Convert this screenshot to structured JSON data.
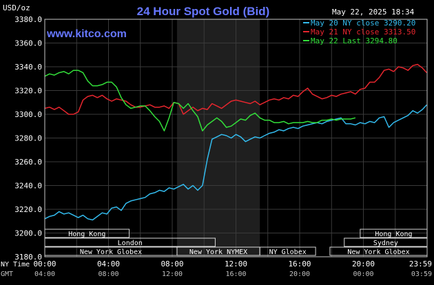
{
  "chart_data": {
    "type": "line",
    "title": "24 Hour Spot Gold (Bid)",
    "watermark": "www.kitco.com",
    "timestamp": "May 22, 2025 18:34",
    "ylabel": "USD/oz",
    "ylim": [
      3180,
      3380
    ],
    "y_ticks": [
      "3180.0",
      "3200.0",
      "3220.0",
      "3240.0",
      "3260.0",
      "3280.0",
      "3300.0",
      "3320.0",
      "3340.0",
      "3360.0",
      "3380.0"
    ],
    "xlim_hours": [
      0,
      24
    ],
    "x_rows": [
      {
        "label": "NY Time",
        "color": "#ffffff",
        "ticks": [
          {
            "h": 0,
            "label": "00:00"
          },
          {
            "h": 4,
            "label": "04:00"
          },
          {
            "h": 8,
            "label": "08:00"
          },
          {
            "h": 12,
            "label": "12:00"
          },
          {
            "h": 16,
            "label": "16:00"
          },
          {
            "h": 20,
            "label": "20:00"
          },
          {
            "h": 23.983,
            "label": "23:59"
          }
        ]
      },
      {
        "label": "GMT",
        "color": "#c0c0c0",
        "ticks": [
          {
            "h": 0,
            "label": "04:00"
          },
          {
            "h": 4,
            "label": "08:00"
          },
          {
            "h": 8,
            "label": "12:00"
          },
          {
            "h": 12,
            "label": "16:00"
          },
          {
            "h": 16,
            "label": "20:00"
          },
          {
            "h": 20,
            "label": "00:00"
          },
          {
            "h": 23.983,
            "label": "03:59"
          }
        ]
      }
    ],
    "shaded_hours": [
      8.3,
      13.5
    ],
    "grid": true,
    "legend_position": "top-right",
    "sessions": [
      {
        "label": "Hong Kong",
        "start": 0,
        "end": 5.3,
        "row": 0
      },
      {
        "label": "Hong Kong",
        "start": 19.8,
        "end": 24,
        "row": 0
      },
      {
        "label": "London",
        "start": 0,
        "end": 10.7,
        "row": 1
      },
      {
        "label": "Sydney",
        "start": 18.8,
        "end": 24,
        "row": 1
      },
      {
        "label": "New York Globex",
        "start": 0,
        "end": 8.3,
        "row": 2
      },
      {
        "label": "New York NYMEX",
        "start": 8.3,
        "end": 13.5,
        "row": 2
      },
      {
        "label": "NY Globex",
        "start": 13.5,
        "end": 17.0,
        "row": 2
      },
      {
        "label": "New York Globex",
        "start": 17.9,
        "end": 24,
        "row": 2
      }
    ],
    "series": [
      {
        "name": "May 20 NY close 3290.20",
        "color": "#33bbee",
        "x": [
          0,
          0.3,
          0.6,
          0.9,
          1.2,
          1.5,
          1.8,
          2.1,
          2.4,
          2.7,
          3.0,
          3.3,
          3.6,
          3.9,
          4.2,
          4.5,
          4.8,
          5.1,
          5.4,
          5.7,
          6.0,
          6.3,
          6.6,
          6.9,
          7.2,
          7.5,
          7.8,
          8.1,
          8.4,
          8.7,
          9.0,
          9.3,
          9.6,
          9.9,
          10.2,
          10.5,
          10.8,
          11.1,
          11.4,
          11.7,
          12.0,
          12.3,
          12.6,
          12.9,
          13.2,
          13.5,
          13.8,
          14.1,
          14.4,
          14.7,
          15.0,
          15.3,
          15.6,
          15.9,
          16.2,
          16.5,
          16.8,
          17.1,
          17.4,
          17.7,
          18.0,
          18.3,
          18.6,
          18.9,
          19.2,
          19.5,
          19.8,
          20.1,
          20.4,
          20.7,
          21.0,
          21.3,
          21.6,
          21.9,
          22.2,
          22.5,
          22.8,
          23.1,
          23.4,
          23.7,
          23.98
        ],
        "values": [
          3212,
          3214,
          3215,
          3218,
          3216,
          3217,
          3215,
          3213,
          3215,
          3212,
          3211,
          3214,
          3217,
          3216,
          3221,
          3222,
          3219,
          3225,
          3227,
          3228,
          3229,
          3230,
          3233,
          3234,
          3236,
          3235,
          3238,
          3237,
          3239,
          3241,
          3237,
          3240,
          3236,
          3240,
          3262,
          3279,
          3281,
          3283,
          3282,
          3280,
          3283,
          3281,
          3277,
          3279,
          3281,
          3280,
          3282,
          3284,
          3285,
          3287,
          3286,
          3288,
          3289,
          3288,
          3290,
          3291,
          3292,
          3293,
          3292,
          3294,
          3295,
          3296,
          3297,
          3292,
          3292,
          3291,
          3293,
          3292,
          3294,
          3293,
          3297,
          3298,
          3289,
          3293,
          3295,
          3297,
          3299,
          3303,
          3301,
          3304,
          3308
        ]
      },
      {
        "name": "May 21 NY close 3313.50",
        "color": "#e8262e",
        "x": [
          0,
          0.3,
          0.6,
          0.9,
          1.2,
          1.5,
          1.8,
          2.1,
          2.4,
          2.7,
          3.0,
          3.3,
          3.6,
          3.9,
          4.2,
          4.5,
          4.8,
          5.1,
          5.4,
          5.7,
          6.0,
          6.3,
          6.6,
          6.9,
          7.2,
          7.5,
          7.8,
          8.1,
          8.4,
          8.7,
          9.0,
          9.3,
          9.6,
          9.9,
          10.2,
          10.5,
          10.8,
          11.1,
          11.4,
          11.7,
          12.0,
          12.3,
          12.6,
          12.9,
          13.2,
          13.5,
          13.8,
          14.1,
          14.4,
          14.7,
          15.0,
          15.3,
          15.6,
          15.9,
          16.2,
          16.5,
          16.8,
          17.1,
          17.4,
          17.7,
          18.0,
          18.3,
          18.6,
          18.9,
          19.2,
          19.5,
          19.8,
          20.1,
          20.4,
          20.7,
          21.0,
          21.3,
          21.6,
          21.9,
          22.2,
          22.5,
          22.8,
          23.1,
          23.4,
          23.7,
          23.98
        ],
        "values": [
          3305,
          3306,
          3304,
          3306,
          3303,
          3300,
          3300,
          3302,
          3312,
          3315,
          3316,
          3314,
          3316,
          3313,
          3311,
          3313,
          3312,
          3311,
          3308,
          3306,
          3306,
          3307,
          3308,
          3306,
          3306,
          3307,
          3305,
          3310,
          3309,
          3300,
          3303,
          3306,
          3303,
          3305,
          3304,
          3309,
          3307,
          3305,
          3308,
          3311,
          3312,
          3311,
          3310,
          3309,
          3311,
          3308,
          3310,
          3312,
          3313,
          3312,
          3314,
          3313,
          3316,
          3315,
          3319,
          3322,
          3317,
          3315,
          3313,
          3314,
          3316,
          3315,
          3317,
          3318,
          3319,
          3317,
          3321,
          3322,
          3327,
          3327,
          3331,
          3337,
          3338,
          3336,
          3340,
          3339,
          3337,
          3341,
          3342,
          3339,
          3335
        ]
      },
      {
        "name": "May 22 Last 3294.80",
        "color": "#33e03a",
        "x": [
          0,
          0.3,
          0.6,
          0.9,
          1.2,
          1.5,
          1.8,
          2.1,
          2.4,
          2.7,
          3.0,
          3.3,
          3.6,
          3.9,
          4.2,
          4.5,
          4.8,
          5.1,
          5.4,
          5.7,
          6.0,
          6.3,
          6.6,
          6.9,
          7.2,
          7.5,
          7.8,
          8.1,
          8.4,
          8.7,
          9.0,
          9.3,
          9.6,
          9.9,
          10.2,
          10.5,
          10.8,
          11.1,
          11.4,
          11.7,
          12.0,
          12.3,
          12.6,
          12.9,
          13.2,
          13.5,
          13.8,
          14.1,
          14.4,
          14.7,
          15.0,
          15.3,
          15.6,
          15.9,
          16.2,
          16.5,
          16.8,
          17.1,
          17.4,
          17.7,
          18.0,
          18.3,
          18.6,
          18.9,
          19.2,
          19.5
        ],
        "values": [
          3332,
          3334,
          3333,
          3335,
          3336,
          3334,
          3337,
          3337,
          3335,
          3328,
          3324,
          3324,
          3325,
          3327,
          3327,
          3323,
          3314,
          3308,
          3305,
          3306,
          3307,
          3307,
          3303,
          3298,
          3294,
          3286,
          3297,
          3310,
          3309,
          3305,
          3309,
          3303,
          3298,
          3286,
          3291,
          3294,
          3297,
          3294,
          3289,
          3290,
          3293,
          3296,
          3295,
          3299,
          3301,
          3297,
          3295,
          3295,
          3293,
          3293,
          3294,
          3292,
          3293,
          3293,
          3293,
          3294,
          3293,
          3293,
          3295,
          3295,
          3296,
          3295,
          3296,
          3296,
          3296,
          3297
        ]
      }
    ]
  }
}
